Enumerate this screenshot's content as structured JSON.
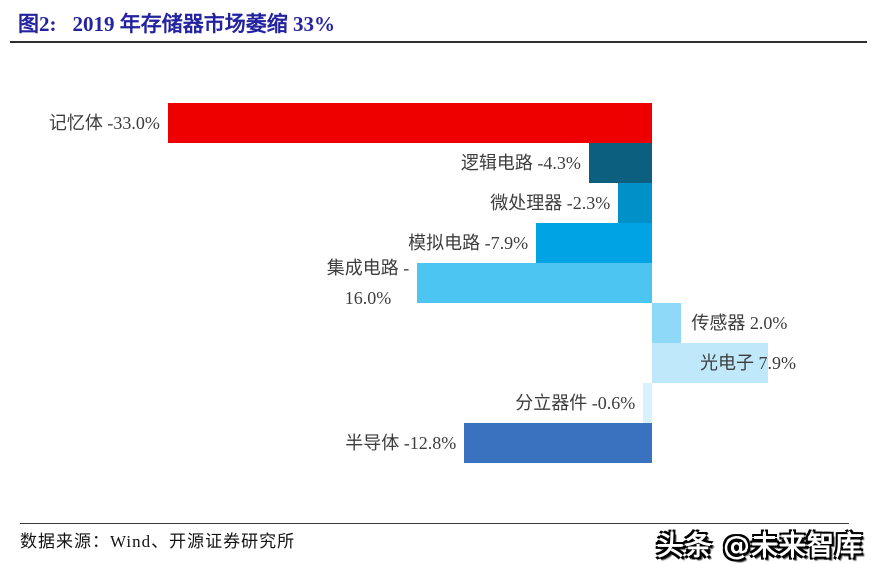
{
  "header": {
    "figure_label": "图2:",
    "title": "2019 年存储器市场萎缩 33%"
  },
  "chart_data": {
    "type": "bar",
    "orientation": "horizontal",
    "title": "2019 年存储器市场萎缩 33%",
    "categories": [
      "记忆体",
      "逻辑电路",
      "微处理器",
      "模拟电路",
      "集成电路",
      "传感器",
      "光电子",
      "分立器件",
      "半导体"
    ],
    "values": [
      -33.0,
      -4.3,
      -2.3,
      -7.9,
      -16.0,
      2.0,
      7.9,
      -0.6,
      -12.8
    ],
    "value_suffix": "%",
    "data_labels": [
      [
        "记忆体 -33.0%"
      ],
      [
        "逻辑电路 -4.3%"
      ],
      [
        "微处理器 -2.3%"
      ],
      [
        "模拟电路 -7.9%"
      ],
      [
        "集成电路 -",
        "16.0%"
      ],
      [
        "传感器 2.0%"
      ],
      [
        "光电子 7.9%"
      ],
      [
        "分立器件 -0.6%"
      ],
      [
        "半导体 -12.8%"
      ]
    ],
    "bar_colors": [
      "#ef0000",
      "#0d5f7f",
      "#0091c9",
      "#00a3e3",
      "#4cc5f2",
      "#8ed8f8",
      "#bfe9fb",
      "#d8f2fd",
      "#3a72c0"
    ],
    "xlim": [
      -33,
      15
    ],
    "grid": false,
    "legend": false,
    "axis_lines": "none"
  },
  "footer": {
    "source": "数据来源：Wind、开源证券研究所",
    "watermark": "头条 @未来智库"
  },
  "colors": {
    "title_navy": "#23239f",
    "label_gray": "#3d3d3d",
    "memory_red": "#ef0000"
  }
}
